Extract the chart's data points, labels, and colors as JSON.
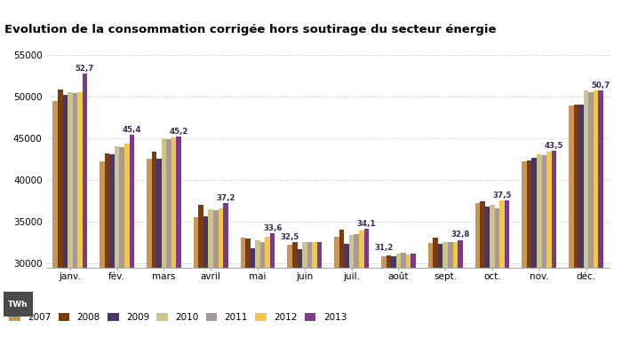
{
  "title": "Evolution de la consommation corrigée hors soutirage du secteur énergie",
  "months": [
    "janv.",
    "fév.",
    "mars",
    "avril",
    "mai",
    "juin",
    "juil.",
    "août",
    "sept.",
    "oct.",
    "nov.",
    "déc."
  ],
  "years": [
    "2007",
    "2008",
    "2009",
    "2010",
    "2011",
    "2012",
    "2013"
  ],
  "colors": [
    "#c8965a",
    "#7b3d10",
    "#4a3568",
    "#ccc488",
    "#a89898",
    "#f0c84a",
    "#7b3a8a"
  ],
  "data": {
    "2007": [
      49500,
      42200,
      42500,
      35500,
      33100,
      32200,
      33200,
      30900,
      32400,
      37200,
      42200,
      48900
    ],
    "2008": [
      50800,
      43200,
      43400,
      37000,
      33000,
      32500,
      34000,
      31000,
      33100,
      37400,
      42300,
      49000
    ],
    "2009": [
      50200,
      43100,
      42500,
      35600,
      31800,
      31700,
      32300,
      30900,
      32300,
      36800,
      42600,
      49000
    ],
    "2010": [
      50500,
      44000,
      45000,
      36500,
      32800,
      32500,
      33400,
      31200,
      32500,
      37000,
      43100,
      50700
    ],
    "2011": [
      50400,
      43900,
      44900,
      36400,
      32600,
      32500,
      33500,
      31300,
      32600,
      36600,
      43000,
      50500
    ],
    "2012": [
      50500,
      44400,
      45100,
      36600,
      33200,
      32600,
      33900,
      31100,
      32600,
      37500,
      43400,
      50700
    ],
    "2013": [
      52700,
      45400,
      45200,
      37200,
      33600,
      32500,
      34100,
      31200,
      32800,
      37500,
      43500,
      50700
    ]
  },
  "annot": {
    "janv.": [
      52700,
      "52,7"
    ],
    "fév.": [
      45400,
      "45,4"
    ],
    "mars": [
      45200,
      "45,2"
    ],
    "avril": [
      37200,
      "37,2"
    ],
    "mai": [
      33600,
      "33,6"
    ],
    "juin": [
      32500,
      "32,5"
    ],
    "juil.": [
      34100,
      "34,1"
    ],
    "août": [
      31200,
      "31,2"
    ],
    "sept.": [
      32800,
      "32,8"
    ],
    "oct.": [
      37500,
      "37,5"
    ],
    "nov.": [
      43500,
      "43,5"
    ],
    "déc.": [
      50700,
      "50,7"
    ]
  },
  "annot_year": {
    "janv.": "2013",
    "fév.": "2013",
    "mars": "2013",
    "avril": "2013",
    "mai": "2013",
    "juin": "2007",
    "juil.": "2013",
    "août": "2007",
    "sept.": "2013",
    "oct.": "2012",
    "nov.": "2013",
    "déc.": "2013"
  },
  "ylim": [
    29500,
    56500
  ],
  "yticks": [
    30000,
    35000,
    40000,
    45000,
    50000,
    55000
  ],
  "grid_color": "#bbbbbb",
  "annot_color": "#3a2855"
}
